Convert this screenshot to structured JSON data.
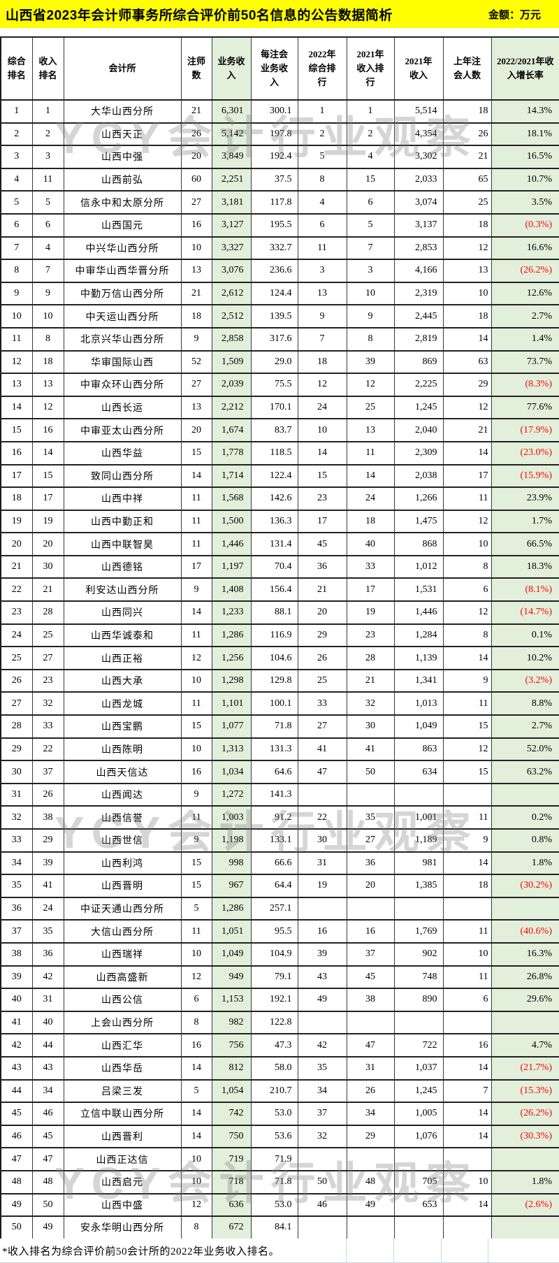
{
  "title": "山西省2023年会计师事务所综合评价前50名信息的公告数据简析",
  "unit_label": "金额：万元",
  "watermark_text": "YCY会计行业观察",
  "footnote": "*收入排名为综合评价前50会计所的2022年业务收入排名。",
  "colors": {
    "title_bg": "#ffff00",
    "highlight_green": "#e2efda",
    "negative_red": "#ff0000",
    "border_dark": "#222222"
  },
  "chart_data": {
    "type": "table",
    "title": "山西省2023年会计师事务所综合评价前50名信息的公告数据简析",
    "unit": "万元",
    "highlighted_columns": [
      "业务收入",
      "2022/2021年收入增长率"
    ],
    "negative_value_style": "red text in parentheses",
    "columns": [
      "综合排名",
      "收入排名",
      "会计所",
      "注师数",
      "业务收入",
      "每注会业务收入",
      "2022年综合排行",
      "2021年收入排行",
      "2021年收入",
      "上年注会人数",
      "2022/2021年收入增长率"
    ],
    "rows": [
      [
        "1",
        "1",
        "大华山西分所",
        "21",
        "6,301",
        "300.1",
        "1",
        "1",
        "5,514",
        "18",
        "14.3%"
      ],
      [
        "2",
        "2",
        "山西天正",
        "26",
        "5,142",
        "197.8",
        "2",
        "2",
        "4,354",
        "26",
        "18.1%"
      ],
      [
        "3",
        "3",
        "山西中强",
        "20",
        "3,849",
        "192.4",
        "5",
        "4",
        "3,302",
        "21",
        "16.5%"
      ],
      [
        "4",
        "11",
        "山西前弘",
        "60",
        "2,251",
        "37.5",
        "8",
        "15",
        "2,033",
        "65",
        "10.7%"
      ],
      [
        "5",
        "5",
        "信永中和太原分所",
        "27",
        "3,181",
        "117.8",
        "4",
        "6",
        "3,074",
        "25",
        "3.5%"
      ],
      [
        "6",
        "6",
        "山西国元",
        "16",
        "3,127",
        "195.5",
        "6",
        "5",
        "3,137",
        "18",
        "(0.3%)"
      ],
      [
        "7",
        "4",
        "中兴华山西分所",
        "10",
        "3,327",
        "332.7",
        "11",
        "7",
        "2,853",
        "12",
        "16.6%"
      ],
      [
        "8",
        "7",
        "中审华山西华晋分所",
        "13",
        "3,076",
        "236.6",
        "3",
        "3",
        "4,166",
        "13",
        "(26.2%)"
      ],
      [
        "9",
        "9",
        "中勤万信山西分所",
        "21",
        "2,612",
        "124.4",
        "13",
        "10",
        "2,319",
        "10",
        "12.6%"
      ],
      [
        "10",
        "10",
        "中天运山西分所",
        "18",
        "2,512",
        "139.5",
        "9",
        "9",
        "2,445",
        "18",
        "2.7%"
      ],
      [
        "11",
        "8",
        "北京兴华山西分所",
        "9",
        "2,858",
        "317.6",
        "7",
        "8",
        "2,819",
        "14",
        "1.4%"
      ],
      [
        "12",
        "18",
        "华审国际山西",
        "52",
        "1,509",
        "29.0",
        "18",
        "39",
        "869",
        "63",
        "73.7%"
      ],
      [
        "13",
        "13",
        "中审众环山西分所",
        "27",
        "2,039",
        "75.5",
        "12",
        "12",
        "2,225",
        "29",
        "(8.3%)"
      ],
      [
        "14",
        "12",
        "山西长运",
        "13",
        "2,212",
        "170.1",
        "24",
        "25",
        "1,245",
        "12",
        "77.6%"
      ],
      [
        "15",
        "16",
        "中审亚太山西分所",
        "20",
        "1,674",
        "83.7",
        "10",
        "13",
        "2,040",
        "21",
        "(17.9%)"
      ],
      [
        "16",
        "14",
        "山西华益",
        "15",
        "1,778",
        "118.5",
        "14",
        "11",
        "2,309",
        "14",
        "(23.0%)"
      ],
      [
        "17",
        "15",
        "致同山西分所",
        "14",
        "1,714",
        "122.4",
        "15",
        "14",
        "2,038",
        "17",
        "(15.9%)"
      ],
      [
        "18",
        "17",
        "山西中祥",
        "11",
        "1,568",
        "142.6",
        "23",
        "24",
        "1,266",
        "11",
        "23.9%"
      ],
      [
        "19",
        "19",
        "山西中勤正和",
        "11",
        "1,500",
        "136.3",
        "17",
        "18",
        "1,475",
        "12",
        "1.7%"
      ],
      [
        "20",
        "20",
        "山西中联智昊",
        "11",
        "1,446",
        "131.4",
        "45",
        "40",
        "868",
        "10",
        "66.5%"
      ],
      [
        "21",
        "30",
        "山西德铭",
        "17",
        "1,197",
        "70.4",
        "36",
        "33",
        "1,012",
        "8",
        "18.3%"
      ],
      [
        "22",
        "21",
        "利安达山西分所",
        "9",
        "1,408",
        "156.4",
        "21",
        "17",
        "1,531",
        "6",
        "(8.1%)"
      ],
      [
        "23",
        "28",
        "山西同兴",
        "14",
        "1,233",
        "88.1",
        "20",
        "19",
        "1,446",
        "12",
        "(14.7%)"
      ],
      [
        "24",
        "25",
        "山西华诚泰和",
        "11",
        "1,286",
        "116.9",
        "29",
        "23",
        "1,284",
        "8",
        "0.1%"
      ],
      [
        "25",
        "27",
        "山西正裕",
        "12",
        "1,256",
        "104.6",
        "26",
        "28",
        "1,139",
        "14",
        "10.2%"
      ],
      [
        "26",
        "23",
        "山西大承",
        "10",
        "1,298",
        "129.8",
        "25",
        "21",
        "1,341",
        "9",
        "(3.2%)"
      ],
      [
        "27",
        "32",
        "山西龙城",
        "11",
        "1,101",
        "100.1",
        "33",
        "32",
        "1,013",
        "11",
        "8.8%"
      ],
      [
        "28",
        "33",
        "山西宝鹏",
        "15",
        "1,077",
        "71.8",
        "27",
        "30",
        "1,049",
        "15",
        "2.7%"
      ],
      [
        "29",
        "22",
        "山西陈明",
        "10",
        "1,313",
        "131.3",
        "41",
        "41",
        "863",
        "12",
        "52.0%"
      ],
      [
        "30",
        "37",
        "山西天信达",
        "16",
        "1,034",
        "64.6",
        "47",
        "50",
        "634",
        "15",
        "63.2%"
      ],
      [
        "31",
        "26",
        "山西闻达",
        "9",
        "1,272",
        "141.3",
        "",
        "",
        "",
        "",
        ""
      ],
      [
        "32",
        "38",
        "山西信誉",
        "11",
        "1,003",
        "91.2",
        "22",
        "35",
        "1,001",
        "11",
        "0.2%"
      ],
      [
        "33",
        "29",
        "山西世信",
        "9",
        "1,198",
        "133.1",
        "30",
        "27",
        "1,189",
        "9",
        "0.8%"
      ],
      [
        "34",
        "39",
        "山西利鸿",
        "15",
        "998",
        "66.6",
        "31",
        "36",
        "981",
        "14",
        "1.8%"
      ],
      [
        "35",
        "41",
        "山西晋明",
        "15",
        "967",
        "64.4",
        "19",
        "20",
        "1,385",
        "18",
        "(30.2%)"
      ],
      [
        "36",
        "24",
        "中证天通山西分所",
        "5",
        "1,286",
        "257.1",
        "",
        "",
        "",
        "",
        ""
      ],
      [
        "37",
        "35",
        "大信山西分所",
        "11",
        "1,051",
        "95.5",
        "16",
        "16",
        "1,769",
        "11",
        "(40.6%)"
      ],
      [
        "38",
        "36",
        "山西瑞祥",
        "10",
        "1,049",
        "104.9",
        "39",
        "37",
        "902",
        "10",
        "16.3%"
      ],
      [
        "39",
        "42",
        "山西高盛新",
        "12",
        "949",
        "79.1",
        "43",
        "45",
        "748",
        "11",
        "26.8%"
      ],
      [
        "40",
        "31",
        "山西公信",
        "6",
        "1,153",
        "192.1",
        "49",
        "38",
        "890",
        "6",
        "29.6%"
      ],
      [
        "41",
        "40",
        "上会山西分所",
        "8",
        "982",
        "122.8",
        "",
        "",
        "",
        "",
        ""
      ],
      [
        "42",
        "44",
        "山西汇华",
        "16",
        "756",
        "47.3",
        "42",
        "47",
        "722",
        "16",
        "4.7%"
      ],
      [
        "43",
        "43",
        "山西华岳",
        "14",
        "812",
        "58.0",
        "35",
        "31",
        "1,037",
        "14",
        "(21.7%)"
      ],
      [
        "44",
        "34",
        "吕梁三发",
        "5",
        "1,054",
        "210.7",
        "34",
        "26",
        "1,245",
        "7",
        "(15.3%)"
      ],
      [
        "45",
        "46",
        "立信中联山西分所",
        "14",
        "742",
        "53.0",
        "37",
        "34",
        "1,005",
        "14",
        "(26.2%)"
      ],
      [
        "46",
        "45",
        "山西晋利",
        "14",
        "750",
        "53.6",
        "32",
        "29",
        "1,076",
        "14",
        "(30.3%)"
      ],
      [
        "47",
        "47",
        "山西正达信",
        "10",
        "719",
        "71.9",
        "",
        "",
        "",
        "",
        ""
      ],
      [
        "48",
        "48",
        "山西启元",
        "10",
        "718",
        "71.8",
        "50",
        "48",
        "705",
        "10",
        "1.8%"
      ],
      [
        "49",
        "50",
        "山西中盛",
        "12",
        "636",
        "53.0",
        "46",
        "49",
        "653",
        "14",
        "(2.6%)"
      ],
      [
        "50",
        "49",
        "安永华明山西分所",
        "8",
        "672",
        "84.1",
        "",
        "",
        "",
        "",
        ""
      ]
    ],
    "notes": "*收入排名为综合评价前50会计所的2022年业务收入排名。"
  }
}
